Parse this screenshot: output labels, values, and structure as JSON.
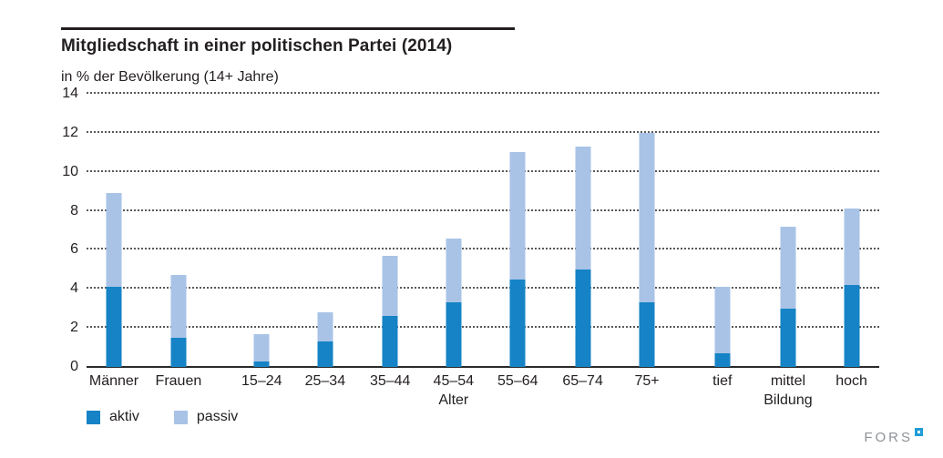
{
  "header": {
    "title": "Mitgliedschaft in einer politischen Partei (2014)",
    "subtitle": "in % der Bevölkerung (14+ Jahre)"
  },
  "chart_data": {
    "type": "bar",
    "stacked": true,
    "title": "Mitgliedschaft in einer politischen Partei (2014)",
    "subtitle": "in % der Bevölkerung (14+ Jahre)",
    "categories": [
      "Männer",
      "Frauen",
      "15–24",
      "25–34",
      "35–44",
      "45–54",
      "55–64",
      "65–74",
      "75+",
      "tief",
      "mittel",
      "hoch"
    ],
    "series": [
      {
        "name": "aktiv",
        "color": "#1583c5",
        "values": [
          4.1,
          1.5,
          0.3,
          1.3,
          2.6,
          3.3,
          4.5,
          5.0,
          3.3,
          0.7,
          3.0,
          4.2
        ]
      },
      {
        "name": "passiv",
        "color": "#a9c3e7",
        "values": [
          4.8,
          3.2,
          1.4,
          1.5,
          3.1,
          3.3,
          6.5,
          6.3,
          8.7,
          3.4,
          4.2,
          3.9
        ]
      }
    ],
    "totals": [
      8.9,
      4.7,
      1.7,
      2.8,
      5.7,
      6.6,
      11.0,
      11.3,
      12.0,
      4.1,
      7.2,
      8.1
    ],
    "yticks": [
      0,
      2,
      4,
      6,
      8,
      10,
      12,
      14
    ],
    "ylim": [
      0,
      14
    ],
    "grid": "horizontal-dotted",
    "legend_position": "bottom-left",
    "group_labels": [
      {
        "label": "Alter",
        "under": "45–54"
      },
      {
        "label": "Bildung",
        "under": "mittel"
      }
    ],
    "centers_pct": [
      3.45,
      11.6,
      22.1,
      30.1,
      38.3,
      46.3,
      54.4,
      62.6,
      70.7,
      80.2,
      88.5,
      96.5
    ]
  },
  "legend": {
    "items": [
      {
        "label": "aktiv",
        "color": "#1583c5"
      },
      {
        "label": "passiv",
        "color": "#a9c3e7"
      }
    ]
  },
  "footer": {
    "logo_text": "FORS"
  }
}
